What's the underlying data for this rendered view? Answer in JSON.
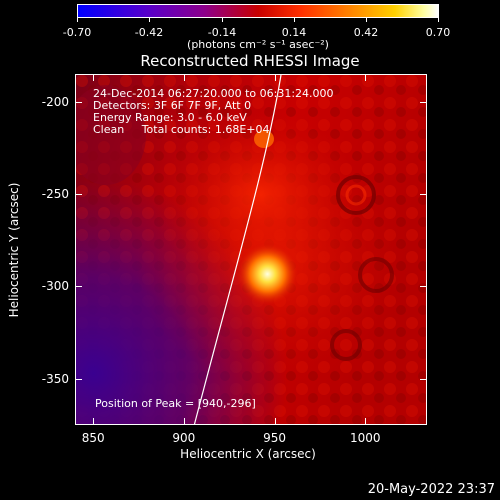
{
  "colorbar": {
    "ticks": [
      "-0.70",
      "-0.42",
      "-0.14",
      "0.14",
      "0.42",
      "0.70"
    ],
    "units": "(photons cm⁻² s⁻¹ asec⁻²)"
  },
  "title": "Reconstructed RHESSI Image",
  "info": {
    "line1": "24-Dec-2014 06:27:20.000 to 06:31:24.000",
    "line2": "Detectors: 3F 6F 7F 9F, Att 0",
    "line3": "Energy Range: 3.0 - 6.0 keV",
    "line4": "Clean     Total counts: 1.68E+04",
    "peak": "Position of Peak = [940,-296]"
  },
  "axes": {
    "x_title": "Heliocentric X (arcsec)",
    "y_title": "Heliocentric Y (arcsec)",
    "x_ticks": [
      "850",
      "900",
      "950",
      "1000"
    ],
    "x_tick_values": [
      850,
      900,
      950,
      1000
    ],
    "y_ticks": [
      "-200",
      "-250",
      "-300",
      "-350"
    ],
    "y_tick_values": [
      -200,
      -250,
      -300,
      -350
    ],
    "x_range": [
      840,
      1034
    ],
    "y_range": [
      -375,
      -185
    ]
  },
  "peak": {
    "x": 940,
    "y": -296
  },
  "datestamp": "20-May-2022 23:37"
}
